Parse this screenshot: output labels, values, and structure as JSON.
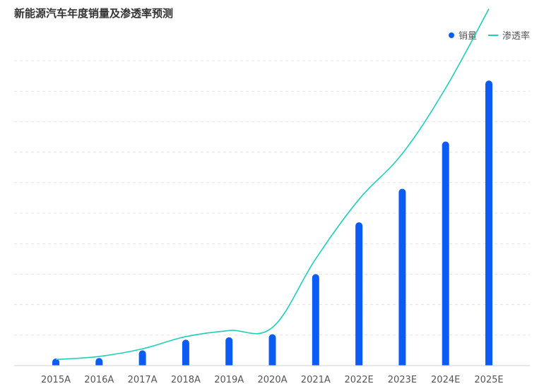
{
  "chart": {
    "title": "新能源汽车年度销量及渗透率预测",
    "legend": {
      "sales_label": "销量",
      "penetration_label": "渗透率"
    }
  },
  "colors": {
    "bar": "#0a5cf5",
    "line": "#1fcfb8",
    "grid": "#e3e3e3",
    "axis": "#d0d0d0"
  },
  "chart_data": {
    "type": "bar",
    "categories": [
      "2015A",
      "2016A",
      "2017A",
      "2018A",
      "2019A",
      "2020A",
      "2021A",
      "2022E",
      "2023E",
      "2024E",
      "2025E"
    ],
    "ylim": [
      0,
      100
    ],
    "grid": true,
    "legend_position": "top-right",
    "series": [
      {
        "name": "销量",
        "type": "bar",
        "values": [
          1,
          2.5,
          5,
          8.5,
          9.3,
          10.3,
          30,
          47,
          58,
          73.5,
          93.5
        ]
      },
      {
        "name": "渗透率",
        "type": "line",
        "values": [
          2,
          3,
          5.5,
          9.5,
          11.5,
          12.5,
          35,
          54.5,
          69.5,
          91,
          117
        ]
      }
    ]
  }
}
